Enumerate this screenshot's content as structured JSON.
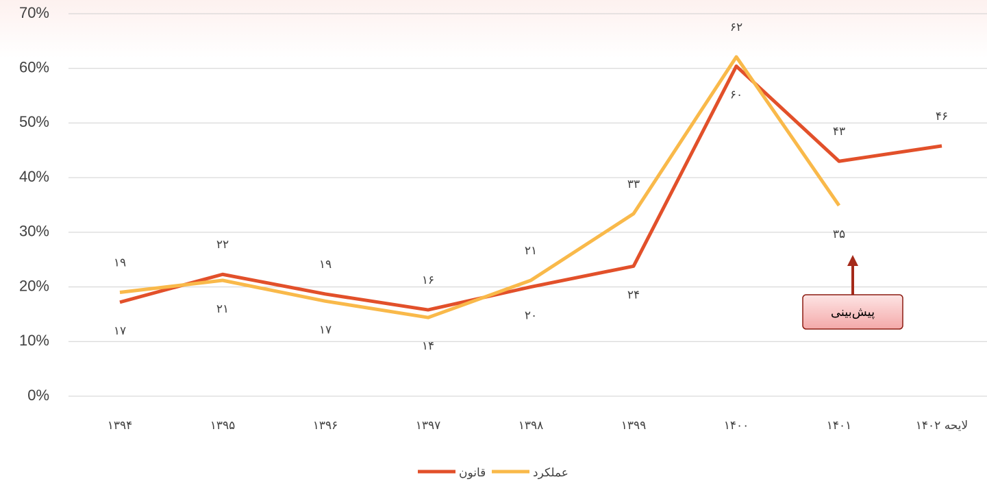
{
  "chart_data": {
    "type": "line",
    "categories": [
      "۱۳۹۴",
      "۱۳۹۵",
      "۱۳۹۶",
      "۱۳۹۷",
      "۱۳۹۸",
      "۱۳۹۹",
      "۱۴۰۰",
      "۱۴۰۱",
      "لایحه ۱۴۰۲"
    ],
    "series": [
      {
        "name": "قانون",
        "color": "#e2502a",
        "values": [
          17.2,
          22.3,
          18.7,
          15.8,
          20,
          23.8,
          60.4,
          43,
          45.8
        ],
        "value_labels": [
          "۱۷",
          "۲۲",
          "۱۹",
          "۱۶",
          "۲۰",
          "۲۴",
          "۶۰",
          "۴۳",
          "۴۶"
        ]
      },
      {
        "name": "عملکرد",
        "color": "#f9b94a",
        "values": [
          19,
          21.2,
          17.4,
          14.4,
          21.2,
          33.4,
          62.1,
          34.9,
          null
        ],
        "value_labels": [
          "۱۹",
          "۲۱",
          "۱۷",
          "۱۴",
          "۲۱",
          "۳۳",
          "۶۲",
          "۳۵",
          null
        ]
      }
    ],
    "ylim": [
      0,
      70
    ],
    "yticks": [
      {
        "value": 0,
        "label": "0%"
      },
      {
        "value": 10,
        "label": "10%"
      },
      {
        "value": 20,
        "label": "20%"
      },
      {
        "value": 30,
        "label": "30%"
      },
      {
        "value": 40,
        "label": "40%"
      },
      {
        "value": 50,
        "label": "50%"
      },
      {
        "value": 60,
        "label": "60%"
      },
      {
        "value": 70,
        "label": "70%"
      }
    ],
    "grid": true,
    "legend": "bottom",
    "annotation": "پیش‌بینی"
  }
}
